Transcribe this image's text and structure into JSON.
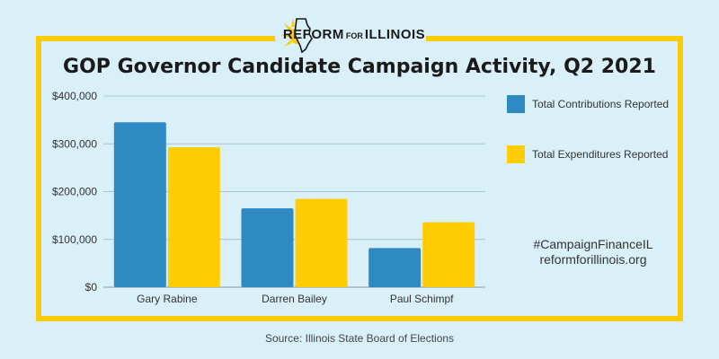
{
  "branding": {
    "logo_word1": "REFORM",
    "logo_word2": "FOR",
    "logo_word3": "ILLINOIS",
    "frame_color": "#f8cc0a",
    "background_color": "#d9f0f9"
  },
  "title": "GOP Governor Candidate Campaign Activity, Q2 2021",
  "hashtag": "#CampaignFinanceIL",
  "website": "reformforillinois.org",
  "source": "Source: Illinois State Board of Elections",
  "chart_data": {
    "type": "bar",
    "categories": [
      "Gary Rabine",
      "Darren Bailey",
      "Paul Schimpf"
    ],
    "series": [
      {
        "name": "Total Contributions Reported",
        "color": "#2f89c2",
        "values": [
          345000,
          165000,
          82000
        ]
      },
      {
        "name": "Total Expenditures Reported",
        "color": "#ffcc05",
        "values": [
          293000,
          185000,
          136000
        ]
      }
    ],
    "ylim": [
      0,
      400000
    ],
    "yticks": [
      0,
      100000,
      200000,
      300000,
      400000
    ],
    "ytick_labels": [
      "$0",
      "$100,000",
      "$200,000",
      "$300,000",
      "$400,000"
    ],
    "grid": true,
    "legend_position": "right",
    "xlabel": "",
    "ylabel": ""
  }
}
